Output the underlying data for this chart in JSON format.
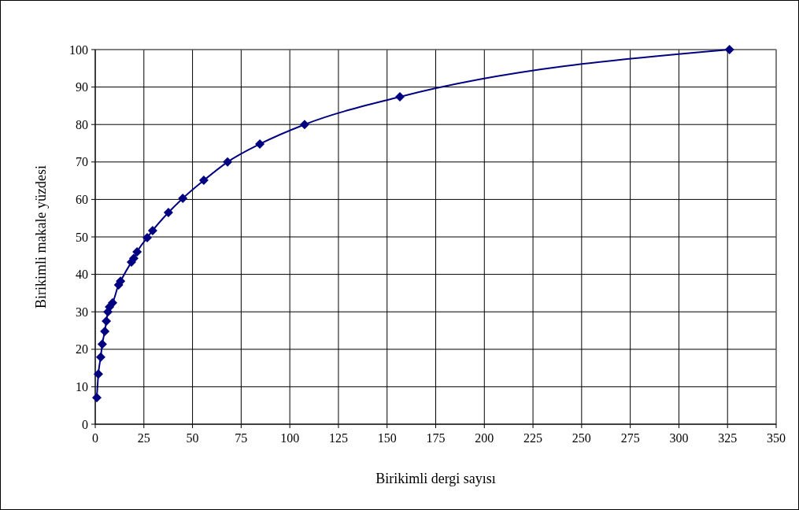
{
  "chart_data": {
    "type": "line",
    "xlabel": "Birikimli dergi sayısı",
    "ylabel": "Birikimli makale yüzdesi",
    "series": [
      {
        "color": "#000080",
        "x": [
          0.8,
          1.6,
          2.8,
          3.6,
          4.9,
          5.7,
          6.5,
          7.3,
          8.9,
          12,
          13,
          18.6,
          19.8,
          21.5,
          26.7,
          29.5,
          37.6,
          45,
          55.8,
          68,
          84.6,
          107.6,
          156.6,
          326
        ],
        "values": [
          7.1,
          13.4,
          17.9,
          21.4,
          24.8,
          27.5,
          30,
          31.3,
          32.4,
          37.2,
          38.2,
          43.3,
          44.3,
          46,
          49.8,
          51.7,
          56.5,
          60.3,
          65.1,
          70,
          74.8,
          80,
          87.4,
          100
        ]
      }
    ],
    "xlim": [
      0,
      350
    ],
    "xticks": [
      0,
      25,
      50,
      75,
      100,
      125,
      150,
      175,
      200,
      225,
      250,
      275,
      300,
      325,
      350
    ],
    "ylim": [
      0,
      100
    ],
    "yticks": [
      0,
      10,
      20,
      30,
      40,
      50,
      60,
      70,
      80,
      90,
      100
    ],
    "grid": true,
    "marker": "diamond",
    "line_style": "solid"
  }
}
